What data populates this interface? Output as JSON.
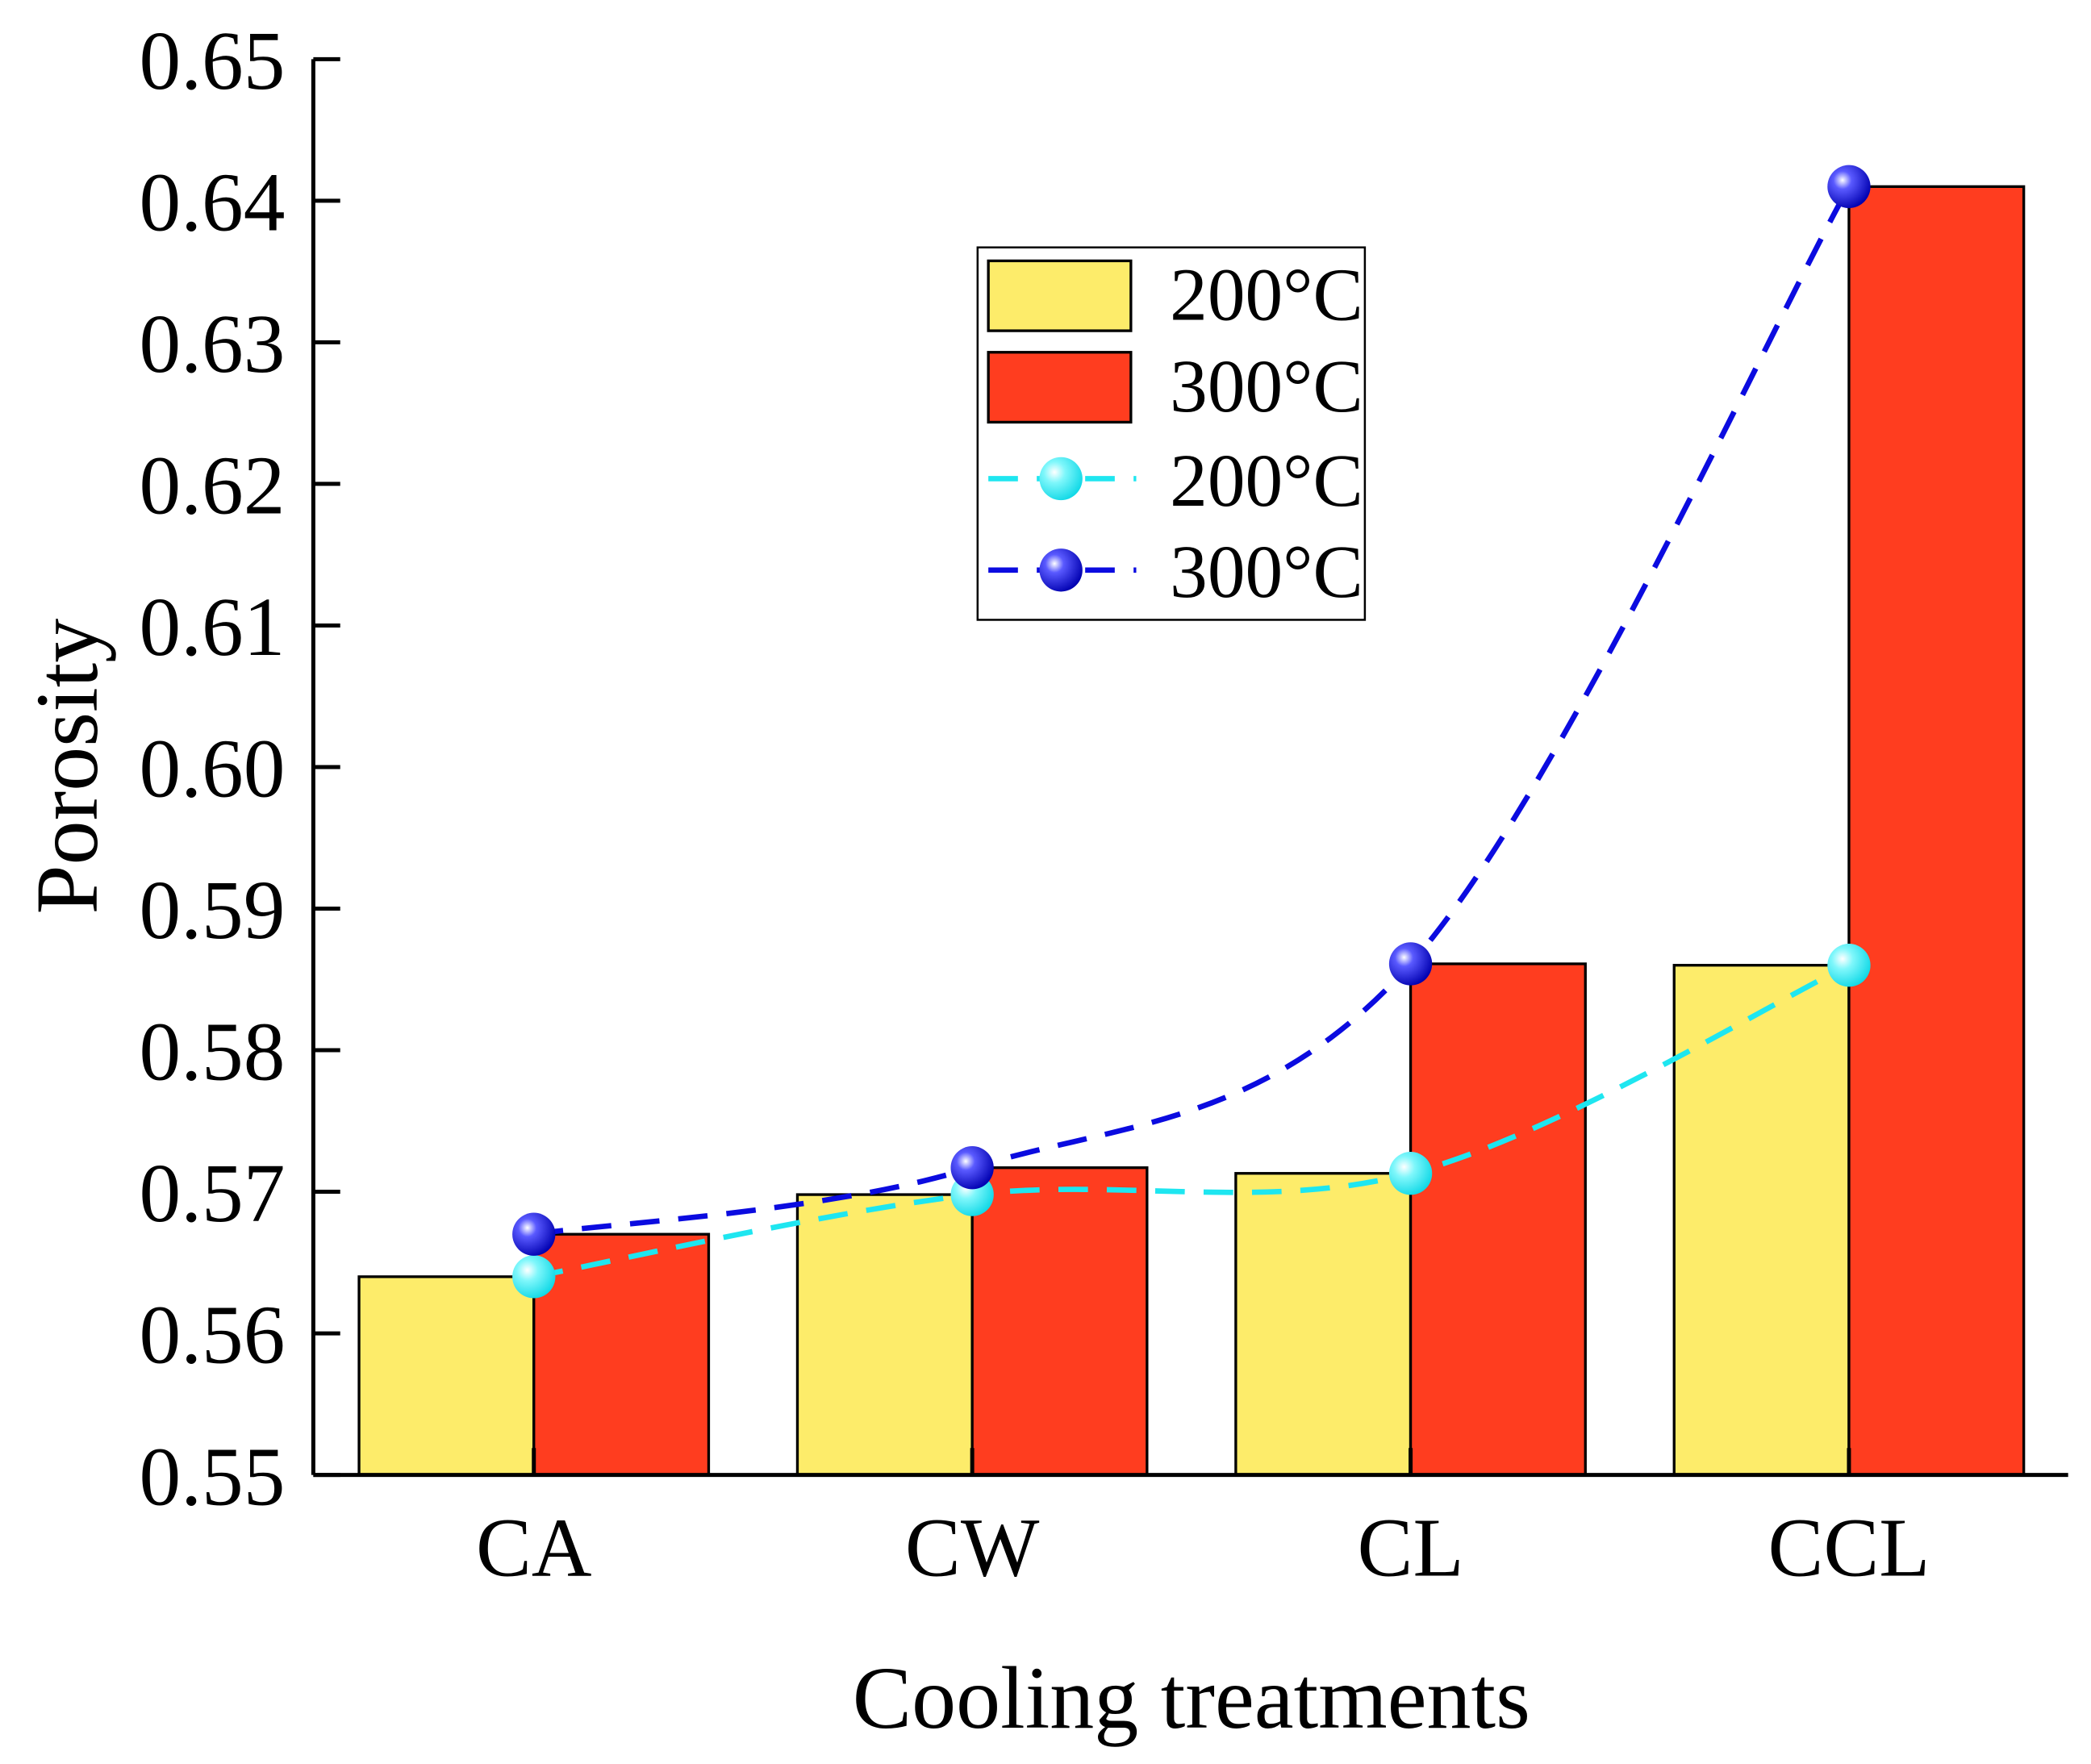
{
  "chart_data": {
    "type": "bar",
    "title": "",
    "xlabel": "Cooling treatments",
    "ylabel": "Porosity",
    "categories": [
      "CA",
      "CW",
      "CL",
      "CCL"
    ],
    "ylim": [
      0.55,
      0.65
    ],
    "yticks": [
      "0.55",
      "0.56",
      "0.57",
      "0.58",
      "0.59",
      "0.60",
      "0.61",
      "0.62",
      "0.63",
      "0.64",
      "0.65"
    ],
    "grid": false,
    "legend_position": "top-center",
    "series": [
      {
        "name": "200°C",
        "kind": "bar",
        "color": "#FDEC6A",
        "values": [
          0.564,
          0.5698,
          0.5713,
          0.586
        ]
      },
      {
        "name": "300°C",
        "kind": "bar",
        "color": "#FF3D1F",
        "values": [
          0.567,
          0.5717,
          0.5861,
          0.641
        ]
      },
      {
        "name": "200°C",
        "kind": "line",
        "color": "#1EE6F0",
        "values": [
          0.564,
          0.5698,
          0.5713,
          0.586
        ]
      },
      {
        "name": "300°C",
        "kind": "line",
        "color": "#0B0BE0",
        "values": [
          0.567,
          0.5717,
          0.5861,
          0.641
        ]
      }
    ]
  }
}
